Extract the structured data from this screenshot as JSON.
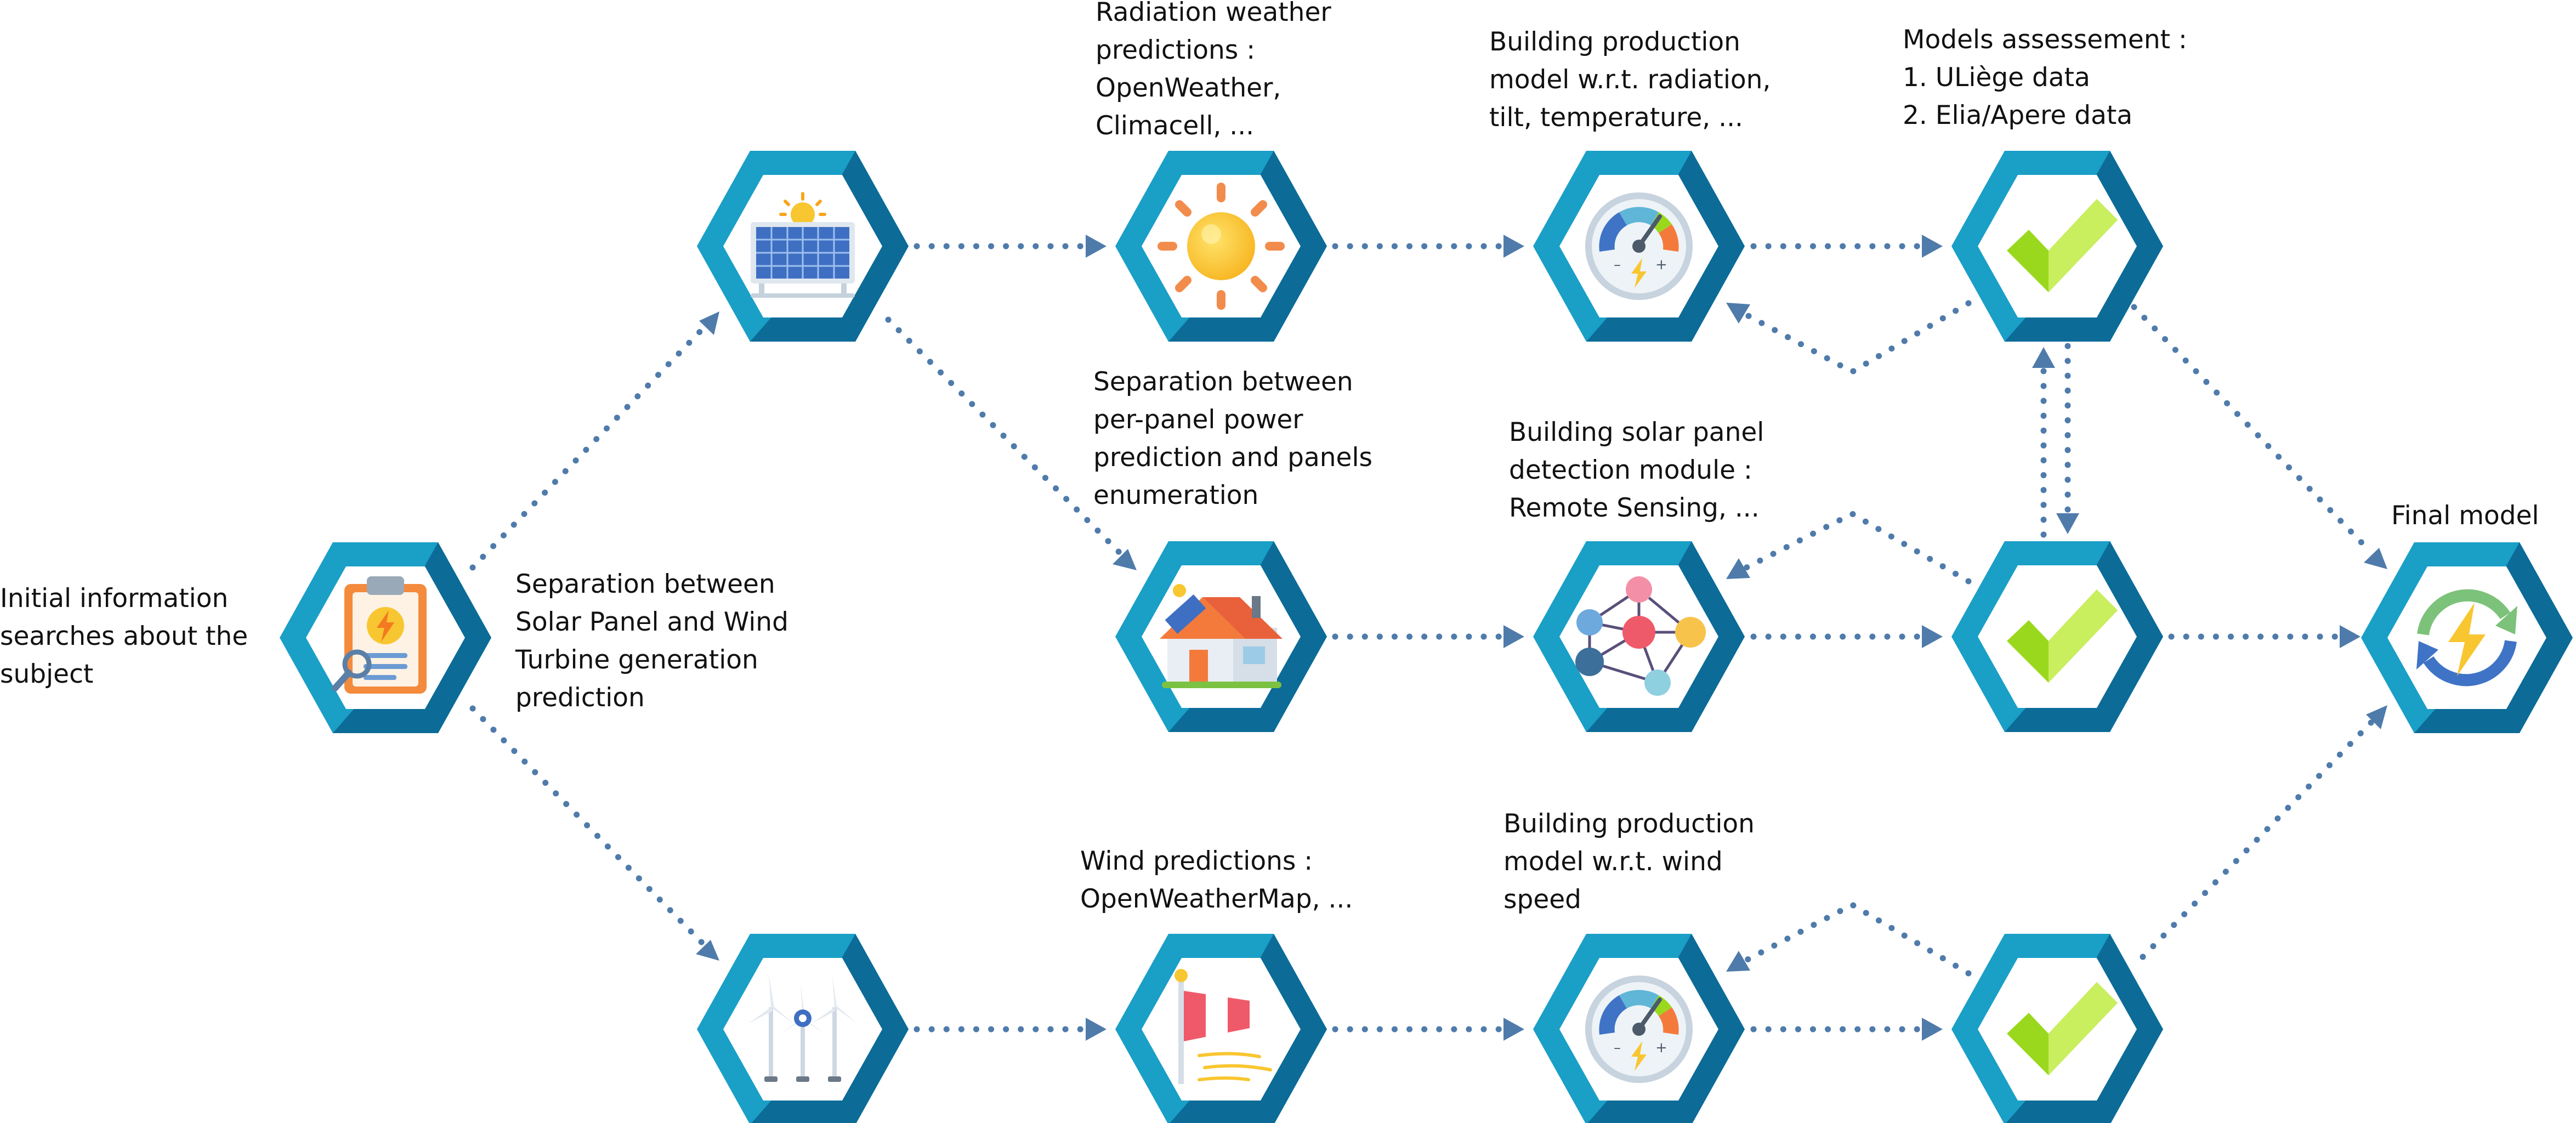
{
  "colors": {
    "hex_outer": "#1a9fc7",
    "hex_outer_shade": "#0c6b97",
    "hex_inner": "#ffffff",
    "connector": "#4f7bab",
    "check": "#9ad81e",
    "check_light": "#c9ee5e"
  },
  "nodes": [
    {
      "id": "initial",
      "icon": "clipboard-icon"
    },
    {
      "id": "solar",
      "icon": "solar-panel-icon"
    },
    {
      "id": "radiation",
      "icon": "sun-icon"
    },
    {
      "id": "production-radiation",
      "icon": "gauge-icon"
    },
    {
      "id": "assessment-top",
      "icon": "checkmark-icon"
    },
    {
      "id": "house",
      "icon": "solar-house-icon"
    },
    {
      "id": "detection",
      "icon": "network-icon"
    },
    {
      "id": "assessment-mid",
      "icon": "checkmark-icon"
    },
    {
      "id": "final",
      "icon": "renewable-energy-icon"
    },
    {
      "id": "wind",
      "icon": "wind-turbine-icon"
    },
    {
      "id": "wind-predictions",
      "icon": "windsock-icon"
    },
    {
      "id": "production-wind",
      "icon": "gauge-icon"
    },
    {
      "id": "assessment-bottom",
      "icon": "checkmark-icon"
    }
  ],
  "labels": {
    "initial": "Initial information\nsearches about the\nsubject",
    "separation_solar_wind": "Separation between\nSolar Panel and Wind\nTurbine generation\nprediction",
    "radiation_predictions": "Radiation weather\npredictions :\nOpenWeather,\nClimacell, ...",
    "production_radiation": "Building production\nmodel w.r.t. radiation,\ntilt, temperature, ...",
    "models_assessment": "Models assessement :\n1. ULiège data\n2. Elia/Apere data",
    "separation_panel": "Separation between\nper-panel power\nprediction and panels\nenumeration",
    "detection_module": "Building solar panel\ndetection module :\nRemote Sensing, ...",
    "final_model": "Final model",
    "wind_predictions": "Wind predictions :\nOpenWeatherMap, ...",
    "production_wind": "Building production\nmodel w.r.t. wind\nspeed"
  }
}
